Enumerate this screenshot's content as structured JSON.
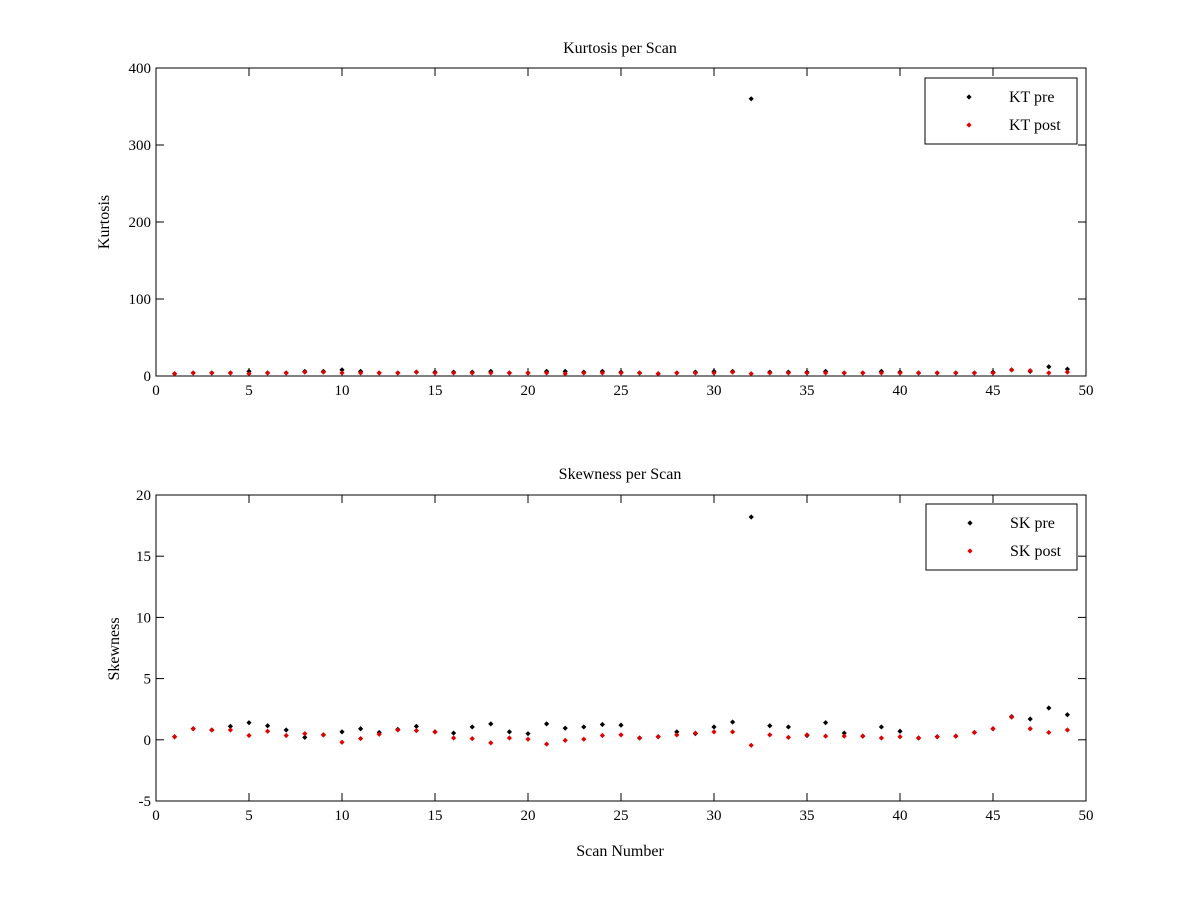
{
  "chart_data": [
    {
      "type": "scatter",
      "title": "Kurtosis per Scan",
      "xlabel": "",
      "ylabel": "Kurtosis",
      "xlim": [
        0,
        50
      ],
      "ylim": [
        0,
        400
      ],
      "xticks": [
        0,
        5,
        10,
        15,
        20,
        25,
        30,
        35,
        40,
        45,
        50
      ],
      "yticks": [
        0,
        100,
        200,
        300,
        400
      ],
      "grid": false,
      "legend_position": "top-right",
      "series": [
        {
          "name": "KT pre",
          "color": "#000000",
          "x": [
            1,
            2,
            3,
            4,
            5,
            6,
            7,
            8,
            9,
            10,
            11,
            12,
            13,
            14,
            15,
            16,
            17,
            18,
            19,
            20,
            21,
            22,
            23,
            24,
            25,
            26,
            27,
            28,
            29,
            30,
            31,
            32,
            33,
            34,
            35,
            36,
            37,
            38,
            39,
            40,
            41,
            42,
            43,
            44,
            45,
            46,
            47,
            48,
            49
          ],
          "y": [
            3,
            4,
            4,
            4,
            6,
            4,
            4,
            6,
            6,
            8,
            6,
            4,
            4,
            5,
            5,
            5,
            5,
            6,
            4,
            4,
            6,
            6,
            5,
            6,
            5,
            4,
            3,
            4,
            5,
            6,
            6,
            360,
            5,
            5,
            5,
            6,
            4,
            4,
            6,
            5,
            4,
            4,
            4,
            4,
            5,
            8,
            6,
            12,
            9
          ]
        },
        {
          "name": "KT post",
          "color": "#e00000",
          "x": [
            1,
            2,
            3,
            4,
            5,
            6,
            7,
            8,
            9,
            10,
            11,
            12,
            13,
            14,
            15,
            16,
            17,
            18,
            19,
            20,
            21,
            22,
            23,
            24,
            25,
            26,
            27,
            28,
            29,
            30,
            31,
            32,
            33,
            34,
            35,
            36,
            37,
            38,
            39,
            40,
            41,
            42,
            43,
            44,
            45,
            46,
            47,
            48,
            49
          ],
          "y": [
            3,
            4,
            4,
            4,
            3,
            4,
            4,
            5,
            5,
            4,
            4,
            4,
            4,
            5,
            4,
            4,
            4,
            4,
            4,
            4,
            4,
            3,
            4,
            4,
            4,
            4,
            3,
            4,
            4,
            4,
            5,
            3,
            4,
            4,
            4,
            4,
            4,
            4,
            4,
            4,
            4,
            4,
            4,
            4,
            4,
            8,
            7,
            4,
            5
          ]
        }
      ]
    },
    {
      "type": "scatter",
      "title": "Skewness per Scan",
      "xlabel": "Scan Number",
      "ylabel": "Skewness",
      "xlim": [
        0,
        50
      ],
      "ylim": [
        -5,
        20
      ],
      "xticks": [
        0,
        5,
        10,
        15,
        20,
        25,
        30,
        35,
        40,
        45,
        50
      ],
      "yticks": [
        -5,
        0,
        5,
        10,
        15,
        20
      ],
      "grid": false,
      "legend_position": "top-right",
      "series": [
        {
          "name": "SK pre",
          "color": "#000000",
          "x": [
            1,
            2,
            3,
            4,
            5,
            6,
            7,
            8,
            9,
            10,
            11,
            12,
            13,
            14,
            15,
            16,
            17,
            18,
            19,
            20,
            21,
            22,
            23,
            24,
            25,
            26,
            27,
            28,
            29,
            30,
            31,
            32,
            33,
            34,
            35,
            36,
            37,
            38,
            39,
            40,
            41,
            42,
            43,
            44,
            45,
            46,
            47,
            48,
            49
          ],
          "y": [
            0.25,
            0.9,
            0.8,
            1.1,
            1.4,
            1.15,
            0.8,
            0.2,
            0.4,
            0.65,
            0.9,
            0.6,
            0.85,
            1.1,
            0.65,
            0.55,
            1.05,
            1.3,
            0.65,
            0.5,
            1.3,
            0.95,
            1.05,
            1.25,
            1.2,
            0.15,
            0.25,
            0.65,
            0.5,
            1.05,
            1.45,
            18.2,
            1.15,
            1.05,
            0.35,
            1.4,
            0.55,
            0.3,
            1.05,
            0.7,
            0.15,
            0.25,
            0.3,
            0.6,
            0.9,
            1.9,
            1.7,
            2.6,
            2.05
          ]
        },
        {
          "name": "SK post",
          "color": "#e00000",
          "x": [
            1,
            2,
            3,
            4,
            5,
            6,
            7,
            8,
            9,
            10,
            11,
            12,
            13,
            14,
            15,
            16,
            17,
            18,
            19,
            20,
            21,
            22,
            23,
            24,
            25,
            26,
            27,
            28,
            29,
            30,
            31,
            32,
            33,
            34,
            35,
            36,
            37,
            38,
            39,
            40,
            41,
            42,
            43,
            44,
            45,
            46,
            47,
            48,
            49
          ],
          "y": [
            0.25,
            0.9,
            0.8,
            0.8,
            0.35,
            0.7,
            0.35,
            0.5,
            0.4,
            -0.2,
            0.1,
            0.45,
            0.8,
            0.75,
            0.65,
            0.15,
            0.1,
            -0.25,
            0.15,
            0.05,
            -0.35,
            -0.05,
            0.05,
            0.35,
            0.4,
            0.15,
            0.25,
            0.4,
            0.55,
            0.65,
            0.65,
            -0.45,
            0.4,
            0.2,
            0.4,
            0.3,
            0.3,
            0.3,
            0.15,
            0.25,
            0.15,
            0.25,
            0.3,
            0.6,
            0.9,
            1.85,
            0.9,
            0.6,
            0.8
          ]
        }
      ]
    }
  ]
}
